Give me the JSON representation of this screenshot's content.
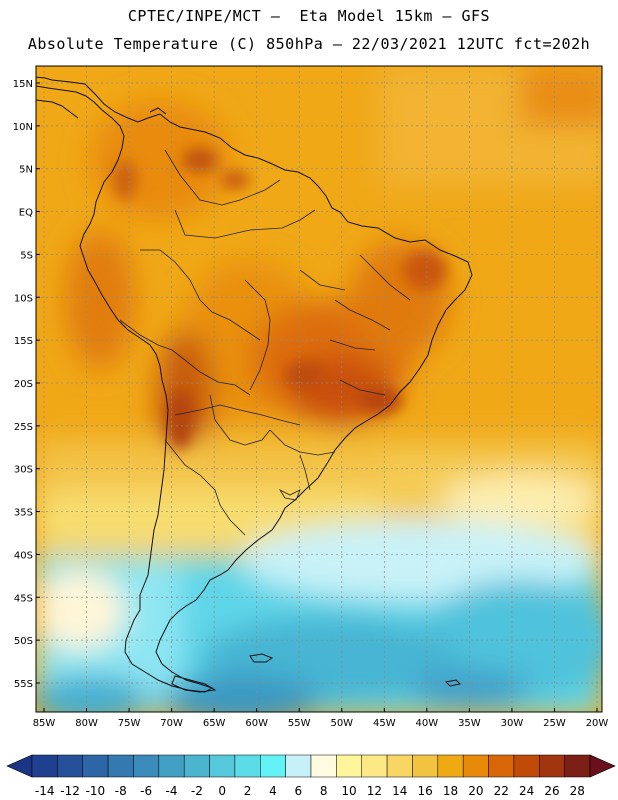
{
  "header": {
    "line1": "CPTEC/INPE/MCT –  Eta Model 15km – GFS",
    "line2": "Absolute Temperature (C) 850hPa – 22/03/2021 12UTC fct=202h"
  },
  "map": {
    "lat_labels": [
      "15N",
      "10N",
      "5N",
      "EQ",
      "5S",
      "10S",
      "15S",
      "20S",
      "25S",
      "30S",
      "35S",
      "40S",
      "45S",
      "50S",
      "55S"
    ],
    "lon_labels": [
      "85W",
      "80W",
      "75W",
      "70W",
      "65W",
      "60W",
      "55W",
      "50W",
      "45W",
      "40W",
      "35W",
      "30W",
      "25W",
      "20W"
    ],
    "lat_values": [
      15,
      10,
      5,
      0,
      -5,
      -10,
      -15,
      -20,
      -25,
      -30,
      -35,
      -40,
      -45,
      -50,
      -55
    ],
    "lon_values": [
      -85,
      -80,
      -75,
      -70,
      -65,
      -60,
      -55,
      -50,
      -45,
      -40,
      -35,
      -30,
      -25,
      -20
    ]
  },
  "colorbar": {
    "labels": [
      "-14",
      "-12",
      "-10",
      "-8",
      "-6",
      "-4",
      "-2",
      "0",
      "2",
      "4",
      "6",
      "8",
      "10",
      "12",
      "14",
      "16",
      "18",
      "20",
      "22",
      "24",
      "26",
      "28"
    ],
    "colors": [
      "#1f3f8f",
      "#26519a",
      "#2d66a6",
      "#3479b0",
      "#3b8cba",
      "#42a0c4",
      "#4bb4cf",
      "#55c8dc",
      "#5cdce6",
      "#63f2f5",
      "#c8f0f8",
      "#fffbe0",
      "#fff59a",
      "#fde886",
      "#f8d663",
      "#f2c241",
      "#efaa13",
      "#e78a09",
      "#d96707",
      "#c04b09",
      "#a03510",
      "#7c1f14"
    ],
    "left_cap_color": "#1a3585",
    "right_cap_color": "#6a0f1c"
  }
}
